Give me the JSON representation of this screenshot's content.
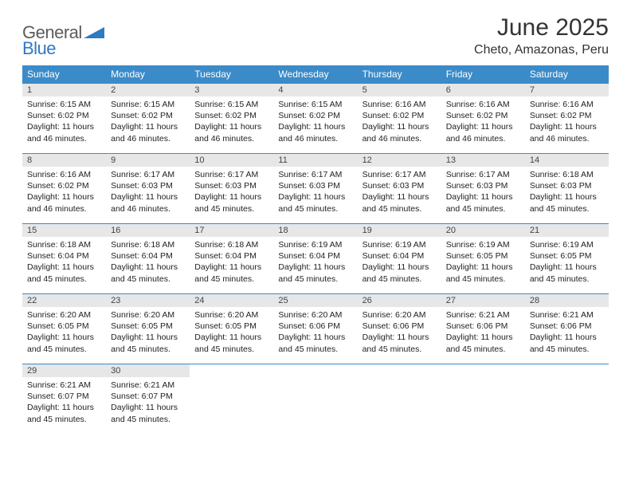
{
  "logo": {
    "general": "General",
    "blue": "Blue"
  },
  "title": "June 2025",
  "location": "Cheto, Amazonas, Peru",
  "colors": {
    "header_bg": "#3b8bc9",
    "header_text": "#ffffff",
    "daynum_bg": "#e7e7e7",
    "row_border": "#3b8bc9",
    "logo_gray": "#5b5b5b",
    "logo_blue": "#2f79c2"
  },
  "weekdays": [
    "Sunday",
    "Monday",
    "Tuesday",
    "Wednesday",
    "Thursday",
    "Friday",
    "Saturday"
  ],
  "days": [
    {
      "n": 1,
      "sunrise": "6:15 AM",
      "sunset": "6:02 PM",
      "daylight": "11 hours and 46 minutes."
    },
    {
      "n": 2,
      "sunrise": "6:15 AM",
      "sunset": "6:02 PM",
      "daylight": "11 hours and 46 minutes."
    },
    {
      "n": 3,
      "sunrise": "6:15 AM",
      "sunset": "6:02 PM",
      "daylight": "11 hours and 46 minutes."
    },
    {
      "n": 4,
      "sunrise": "6:15 AM",
      "sunset": "6:02 PM",
      "daylight": "11 hours and 46 minutes."
    },
    {
      "n": 5,
      "sunrise": "6:16 AM",
      "sunset": "6:02 PM",
      "daylight": "11 hours and 46 minutes."
    },
    {
      "n": 6,
      "sunrise": "6:16 AM",
      "sunset": "6:02 PM",
      "daylight": "11 hours and 46 minutes."
    },
    {
      "n": 7,
      "sunrise": "6:16 AM",
      "sunset": "6:02 PM",
      "daylight": "11 hours and 46 minutes."
    },
    {
      "n": 8,
      "sunrise": "6:16 AM",
      "sunset": "6:02 PM",
      "daylight": "11 hours and 46 minutes."
    },
    {
      "n": 9,
      "sunrise": "6:17 AM",
      "sunset": "6:03 PM",
      "daylight": "11 hours and 46 minutes."
    },
    {
      "n": 10,
      "sunrise": "6:17 AM",
      "sunset": "6:03 PM",
      "daylight": "11 hours and 45 minutes."
    },
    {
      "n": 11,
      "sunrise": "6:17 AM",
      "sunset": "6:03 PM",
      "daylight": "11 hours and 45 minutes."
    },
    {
      "n": 12,
      "sunrise": "6:17 AM",
      "sunset": "6:03 PM",
      "daylight": "11 hours and 45 minutes."
    },
    {
      "n": 13,
      "sunrise": "6:17 AM",
      "sunset": "6:03 PM",
      "daylight": "11 hours and 45 minutes."
    },
    {
      "n": 14,
      "sunrise": "6:18 AM",
      "sunset": "6:03 PM",
      "daylight": "11 hours and 45 minutes."
    },
    {
      "n": 15,
      "sunrise": "6:18 AM",
      "sunset": "6:04 PM",
      "daylight": "11 hours and 45 minutes."
    },
    {
      "n": 16,
      "sunrise": "6:18 AM",
      "sunset": "6:04 PM",
      "daylight": "11 hours and 45 minutes."
    },
    {
      "n": 17,
      "sunrise": "6:18 AM",
      "sunset": "6:04 PM",
      "daylight": "11 hours and 45 minutes."
    },
    {
      "n": 18,
      "sunrise": "6:19 AM",
      "sunset": "6:04 PM",
      "daylight": "11 hours and 45 minutes."
    },
    {
      "n": 19,
      "sunrise": "6:19 AM",
      "sunset": "6:04 PM",
      "daylight": "11 hours and 45 minutes."
    },
    {
      "n": 20,
      "sunrise": "6:19 AM",
      "sunset": "6:05 PM",
      "daylight": "11 hours and 45 minutes."
    },
    {
      "n": 21,
      "sunrise": "6:19 AM",
      "sunset": "6:05 PM",
      "daylight": "11 hours and 45 minutes."
    },
    {
      "n": 22,
      "sunrise": "6:20 AM",
      "sunset": "6:05 PM",
      "daylight": "11 hours and 45 minutes."
    },
    {
      "n": 23,
      "sunrise": "6:20 AM",
      "sunset": "6:05 PM",
      "daylight": "11 hours and 45 minutes."
    },
    {
      "n": 24,
      "sunrise": "6:20 AM",
      "sunset": "6:05 PM",
      "daylight": "11 hours and 45 minutes."
    },
    {
      "n": 25,
      "sunrise": "6:20 AM",
      "sunset": "6:06 PM",
      "daylight": "11 hours and 45 minutes."
    },
    {
      "n": 26,
      "sunrise": "6:20 AM",
      "sunset": "6:06 PM",
      "daylight": "11 hours and 45 minutes."
    },
    {
      "n": 27,
      "sunrise": "6:21 AM",
      "sunset": "6:06 PM",
      "daylight": "11 hours and 45 minutes."
    },
    {
      "n": 28,
      "sunrise": "6:21 AM",
      "sunset": "6:06 PM",
      "daylight": "11 hours and 45 minutes."
    },
    {
      "n": 29,
      "sunrise": "6:21 AM",
      "sunset": "6:07 PM",
      "daylight": "11 hours and 45 minutes."
    },
    {
      "n": 30,
      "sunrise": "6:21 AM",
      "sunset": "6:07 PM",
      "daylight": "11 hours and 45 minutes."
    }
  ],
  "labels": {
    "sunrise": "Sunrise:",
    "sunset": "Sunset:",
    "daylight": "Daylight:"
  },
  "start_weekday": 0,
  "total_cells": 35
}
